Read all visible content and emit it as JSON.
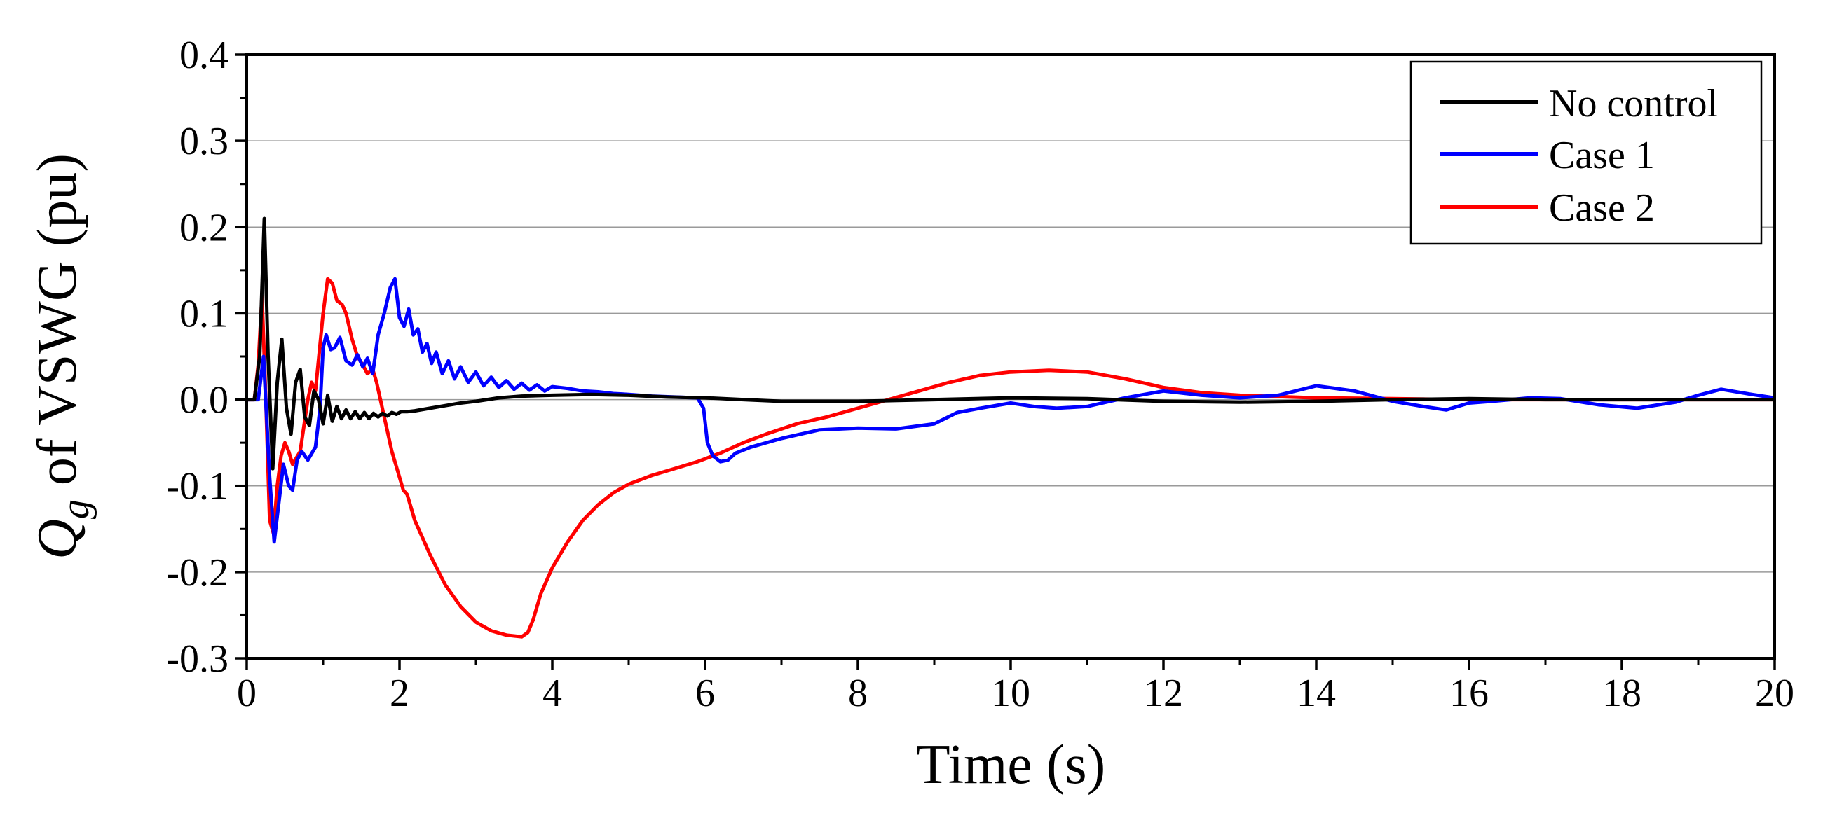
{
  "chart_data": {
    "type": "line",
    "title": "",
    "xlabel": "Time (s)",
    "ylabel": {
      "symbol": "Q",
      "subscript": "g",
      "text": " of VSWG (pu)"
    },
    "xlim": [
      0,
      20
    ],
    "ylim": [
      -0.3,
      0.4
    ],
    "xticks": [
      0,
      2,
      4,
      6,
      8,
      10,
      12,
      14,
      16,
      18,
      20
    ],
    "xtick_labels": [
      "0",
      "2",
      "4",
      "6",
      "8",
      "10",
      "12",
      "14",
      "16",
      "18",
      "20"
    ],
    "yticks": [
      -0.3,
      -0.2,
      -0.1,
      0.0,
      0.1,
      0.2,
      0.3,
      0.4
    ],
    "ytick_labels": [
      "-0.3",
      "-0.2",
      "-0.1",
      "0.0",
      "0.1",
      "0.2",
      "0.3",
      "0.4"
    ],
    "grid": "horizontal",
    "legend_position": "top-right",
    "series": [
      {
        "name": "No control",
        "color": "#000000",
        "x": [
          0,
          0.1,
          0.17,
          0.23,
          0.28,
          0.34,
          0.4,
          0.46,
          0.52,
          0.58,
          0.64,
          0.7,
          0.76,
          0.82,
          0.88,
          0.94,
          1.0,
          1.06,
          1.12,
          1.18,
          1.24,
          1.3,
          1.36,
          1.42,
          1.48,
          1.54,
          1.6,
          1.66,
          1.72,
          1.78,
          1.84,
          1.9,
          1.96,
          2.02,
          2.1,
          2.2,
          2.4,
          2.6,
          2.8,
          3.0,
          3.3,
          3.6,
          4.0,
          4.5,
          5.0,
          5.5,
          6.0,
          6.5,
          7.0,
          8.0,
          9.0,
          10.0,
          11.0,
          12.0,
          13.0,
          14.0,
          15.0,
          16.0,
          17.0,
          18.0,
          19.0,
          20.0
        ],
        "y": [
          0,
          0,
          0.05,
          0.21,
          0.05,
          -0.08,
          0.02,
          0.07,
          -0.01,
          -0.04,
          0.02,
          0.035,
          -0.02,
          -0.03,
          0.01,
          0.0,
          -0.028,
          0.005,
          -0.025,
          -0.008,
          -0.022,
          -0.012,
          -0.022,
          -0.014,
          -0.022,
          -0.015,
          -0.022,
          -0.016,
          -0.02,
          -0.016,
          -0.019,
          -0.015,
          -0.017,
          -0.014,
          -0.014,
          -0.013,
          -0.01,
          -0.007,
          -0.004,
          -0.002,
          0.002,
          0.004,
          0.005,
          0.006,
          0.005,
          0.003,
          0.002,
          0.0,
          -0.002,
          -0.002,
          0.0,
          0.002,
          0.001,
          -0.002,
          -0.003,
          -0.002,
          0.0,
          0.001,
          0.0,
          0.0,
          0.0,
          0.0
        ]
      },
      {
        "name": "Case 1",
        "color": "#0000ff",
        "x": [
          0,
          0.15,
          0.22,
          0.3,
          0.36,
          0.42,
          0.48,
          0.55,
          0.6,
          0.66,
          0.72,
          0.8,
          0.9,
          0.96,
          1.0,
          1.04,
          1.1,
          1.15,
          1.22,
          1.3,
          1.38,
          1.45,
          1.52,
          1.58,
          1.65,
          1.72,
          1.8,
          1.88,
          1.94,
          2.0,
          2.06,
          2.12,
          2.18,
          2.24,
          2.3,
          2.36,
          2.42,
          2.48,
          2.56,
          2.64,
          2.72,
          2.8,
          2.9,
          3.0,
          3.1,
          3.2,
          3.3,
          3.4,
          3.5,
          3.6,
          3.7,
          3.8,
          3.9,
          4.0,
          4.2,
          4.4,
          4.6,
          4.8,
          5.0,
          5.3,
          5.6,
          5.9,
          5.98,
          6.03,
          6.1,
          6.2,
          6.3,
          6.4,
          6.6,
          7.0,
          7.5,
          8.0,
          8.5,
          9.0,
          9.3,
          9.6,
          10.0,
          10.3,
          10.6,
          11.0,
          11.5,
          12.0,
          12.5,
          13.0,
          13.5,
          14.0,
          14.5,
          15.0,
          15.4,
          15.7,
          16.0,
          16.3,
          16.8,
          17.2,
          17.7,
          18.2,
          18.7,
          19.0,
          19.3,
          19.7,
          20.0
        ],
        "y": [
          0,
          0,
          0.05,
          -0.09,
          -0.165,
          -0.12,
          -0.075,
          -0.1,
          -0.105,
          -0.07,
          -0.06,
          -0.07,
          -0.055,
          -0.01,
          0.06,
          0.075,
          0.058,
          0.06,
          0.072,
          0.045,
          0.04,
          0.052,
          0.038,
          0.048,
          0.03,
          0.075,
          0.1,
          0.13,
          0.14,
          0.095,
          0.085,
          0.105,
          0.075,
          0.082,
          0.055,
          0.065,
          0.042,
          0.055,
          0.03,
          0.045,
          0.024,
          0.038,
          0.02,
          0.032,
          0.016,
          0.026,
          0.014,
          0.022,
          0.012,
          0.019,
          0.011,
          0.017,
          0.01,
          0.015,
          0.013,
          0.01,
          0.009,
          0.007,
          0.006,
          0.004,
          0.003,
          0.002,
          -0.01,
          -0.05,
          -0.065,
          -0.072,
          -0.07,
          -0.062,
          -0.055,
          -0.045,
          -0.035,
          -0.033,
          -0.034,
          -0.028,
          -0.015,
          -0.01,
          -0.004,
          -0.008,
          -0.01,
          -0.008,
          0.002,
          0.01,
          0.005,
          0.002,
          0.005,
          0.016,
          0.01,
          -0.002,
          -0.008,
          -0.012,
          -0.004,
          -0.002,
          0.002,
          0.001,
          -0.006,
          -0.01,
          -0.003,
          0.005,
          0.012,
          0.006,
          0.002
        ]
      },
      {
        "name": "Case 2",
        "color": "#ff0000",
        "x": [
          0,
          0.1,
          0.15,
          0.2,
          0.25,
          0.3,
          0.35,
          0.4,
          0.45,
          0.5,
          0.55,
          0.6,
          0.7,
          0.8,
          0.85,
          0.9,
          1.0,
          1.06,
          1.12,
          1.18,
          1.25,
          1.3,
          1.38,
          1.45,
          1.52,
          1.58,
          1.65,
          1.7,
          1.8,
          1.9,
          2.0,
          2.05,
          2.1,
          2.2,
          2.4,
          2.6,
          2.8,
          3.0,
          3.2,
          3.4,
          3.5,
          3.6,
          3.68,
          3.75,
          3.85,
          4.0,
          4.2,
          4.4,
          4.6,
          4.8,
          5.0,
          5.3,
          5.6,
          5.9,
          6.2,
          6.5,
          6.8,
          7.2,
          7.6,
          8.0,
          8.4,
          8.8,
          9.2,
          9.6,
          10.0,
          10.5,
          11.0,
          11.5,
          12.0,
          12.5,
          13.0,
          14.0,
          15.0,
          16.0,
          17.0,
          18.0,
          19.0,
          20.0
        ],
        "y": [
          0,
          0.0,
          0.04,
          0.12,
          0.0,
          -0.14,
          -0.155,
          -0.1,
          -0.065,
          -0.05,
          -0.06,
          -0.075,
          -0.06,
          0.0,
          0.02,
          0.01,
          0.1,
          0.14,
          0.135,
          0.115,
          0.11,
          0.1,
          0.07,
          0.05,
          0.04,
          0.03,
          0.035,
          0.02,
          -0.02,
          -0.06,
          -0.09,
          -0.105,
          -0.11,
          -0.14,
          -0.18,
          -0.215,
          -0.24,
          -0.258,
          -0.268,
          -0.273,
          -0.274,
          -0.275,
          -0.27,
          -0.255,
          -0.225,
          -0.195,
          -0.165,
          -0.14,
          -0.122,
          -0.108,
          -0.098,
          -0.088,
          -0.08,
          -0.072,
          -0.062,
          -0.05,
          -0.04,
          -0.028,
          -0.02,
          -0.01,
          0.0,
          0.01,
          0.02,
          0.028,
          0.032,
          0.034,
          0.032,
          0.024,
          0.014,
          0.008,
          0.005,
          0.002,
          0.001,
          0.0,
          0.0,
          0.0,
          0.0,
          0.0
        ]
      }
    ]
  }
}
